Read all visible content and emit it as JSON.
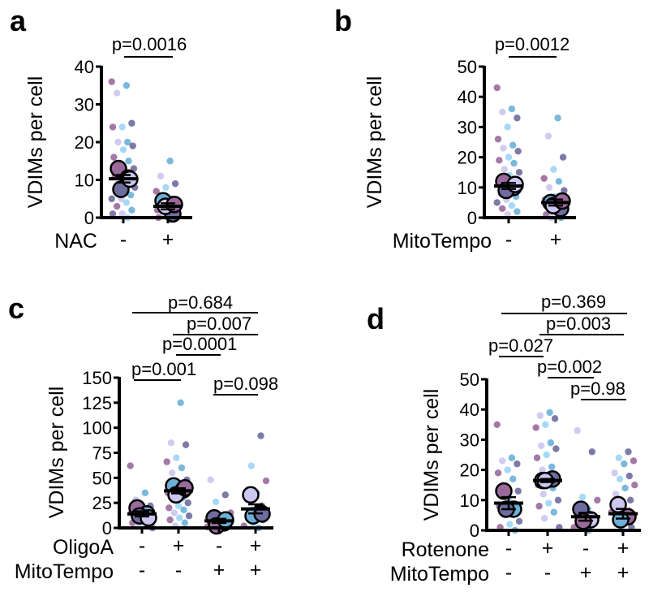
{
  "colors": {
    "purple": "#9a6a9c",
    "blue": "#6cb0d8",
    "lavender": "#cbc7ef",
    "slate": "#6e6d9f",
    "skyblue": "#9ed4f6"
  },
  "chart_data": [
    {
      "panel": "a",
      "type": "scatter",
      "ylabel": "VDIMs per cell",
      "ylim": [
        0,
        40
      ],
      "yticks": [
        "0",
        "10",
        "20",
        "30",
        "40"
      ],
      "rows": [
        {
          "name": "NAC",
          "values": [
            "-",
            "+"
          ]
        }
      ],
      "groups": [
        {
          "mean": 10.3,
          "sem": 1.0,
          "replicates": [
            13,
            10.5,
            7.5,
            10.2
          ],
          "points": [
            36,
            35,
            33,
            25,
            24,
            24,
            20,
            20,
            19,
            18,
            16,
            15,
            14,
            13,
            12,
            11,
            10,
            9,
            8,
            8,
            7,
            6,
            5,
            5,
            4,
            3,
            2,
            1,
            1,
            0
          ]
        },
        {
          "mean": 3.0,
          "sem": 0.8,
          "replicates": [
            4.5,
            1,
            3,
            3.5
          ],
          "points": [
            15,
            11,
            9,
            8,
            7,
            5,
            4,
            3,
            3,
            2,
            2,
            1,
            1,
            0,
            0,
            0
          ]
        }
      ],
      "comparisons": [
        {
          "groups": [
            1,
            2
          ],
          "label": "p=0.0016"
        }
      ]
    },
    {
      "panel": "b",
      "type": "scatter",
      "ylabel": "VDIMs per cell",
      "ylim": [
        0,
        50
      ],
      "yticks": [
        "0",
        "10",
        "20",
        "30",
        "40",
        "50"
      ],
      "rows": [
        {
          "name": "MitoTempo",
          "values": [
            "-",
            "+"
          ]
        }
      ],
      "groups": [
        {
          "mean": 10.5,
          "sem": 1.0,
          "replicates": [
            12,
            10,
            9,
            11
          ],
          "points": [
            43,
            36,
            35,
            33,
            30,
            26,
            24,
            23,
            22,
            20,
            19,
            18,
            16,
            15,
            14,
            13,
            12,
            11,
            10,
            9,
            8,
            7,
            6,
            5,
            4,
            3,
            2,
            1
          ]
        },
        {
          "mean": 5.0,
          "sem": 1.0,
          "replicates": [
            5,
            3,
            4,
            5.5
          ],
          "points": [
            33,
            27,
            20,
            16,
            13,
            12,
            10,
            9,
            7,
            6,
            5,
            4,
            3,
            2,
            1,
            0,
            0
          ]
        }
      ],
      "comparisons": [
        {
          "groups": [
            1,
            2
          ],
          "label": "p=0.0012"
        }
      ]
    },
    {
      "panel": "c",
      "type": "scatter",
      "ylabel": "VDIMs per cell",
      "ylim": [
        0,
        150
      ],
      "yticks": [
        "0",
        "25",
        "50",
        "75",
        "100",
        "125",
        "150"
      ],
      "rows": [
        {
          "name": "OligoA",
          "values": [
            "-",
            "+",
            "-",
            "+"
          ]
        },
        {
          "name": "MitoTempo",
          "values": [
            "-",
            "-",
            "+",
            "+"
          ]
        }
      ],
      "groups": [
        {
          "mean": 14,
          "sem": 2.5,
          "replicates": [
            20,
            14,
            12,
            10
          ],
          "points": [
            62,
            35,
            28,
            22,
            18,
            15,
            12,
            10,
            8,
            6,
            5,
            3,
            2,
            0
          ]
        },
        {
          "mean": 37,
          "sem": 2.5,
          "replicates": [
            42,
            38,
            33,
            40
          ],
          "points": [
            125,
            85,
            83,
            70,
            66,
            60,
            55,
            48,
            40,
            35,
            30,
            28,
            25,
            22,
            20,
            18,
            15,
            12,
            10,
            8,
            5,
            2
          ]
        },
        {
          "mean": 7,
          "sem": 2.0,
          "replicates": [
            10,
            5,
            2,
            8
          ],
          "points": [
            48,
            33,
            26,
            15,
            10,
            8,
            5,
            3,
            1,
            0
          ]
        },
        {
          "mean": 19,
          "sem": 4.5,
          "replicates": [
            33,
            15,
            12,
            14
          ],
          "points": [
            92,
            62,
            47,
            35,
            28,
            22,
            18,
            15,
            12,
            10,
            8,
            5,
            2,
            0
          ]
        }
      ],
      "comparisons": [
        {
          "groups": [
            1,
            4
          ],
          "label": "p=0.684"
        },
        {
          "groups": [
            2,
            4
          ],
          "label": "p=0.007"
        },
        {
          "groups": [
            2,
            3
          ],
          "label": "p=0.0001"
        },
        {
          "groups": [
            1,
            2
          ],
          "label": "p=0.001"
        },
        {
          "groups": [
            3,
            4
          ],
          "label": "p=0.098"
        }
      ]
    },
    {
      "panel": "d",
      "type": "scatter",
      "ylabel": "VDIMs per cell",
      "ylim": [
        0,
        50
      ],
      "yticks": [
        "0",
        "10",
        "20",
        "30",
        "40",
        "50"
      ],
      "rows": [
        {
          "name": "Rotenone",
          "values": [
            "-",
            "+",
            "-",
            "+"
          ]
        },
        {
          "name": "MitoTempo",
          "values": [
            "-",
            "-",
            "+",
            "+"
          ]
        }
      ],
      "groups": [
        {
          "mean": 9,
          "sem": 2.0,
          "replicates": [
            13,
            7,
            7
          ],
          "points": [
            35,
            24,
            23,
            22,
            20,
            19,
            17,
            15,
            13,
            10,
            8,
            6,
            5,
            3,
            2,
            1,
            0
          ]
        },
        {
          "mean": 16.5,
          "sem": 0.5,
          "replicates": [
            16.5,
            17,
            16.5
          ],
          "points": [
            39,
            38,
            37,
            35,
            34,
            29,
            28,
            27,
            25,
            24,
            21,
            20,
            18,
            16,
            15,
            14,
            12,
            10,
            9,
            8,
            6,
            4,
            1
          ]
        },
        {
          "mean": 4.5,
          "sem": 1.3,
          "replicates": [
            7,
            3.5,
            3
          ],
          "points": [
            33,
            26,
            11,
            10,
            7,
            5,
            3,
            2,
            1,
            0
          ]
        },
        {
          "mean": 5.5,
          "sem": 1.6,
          "replicates": [
            8.5,
            4.5,
            3.5
          ],
          "points": [
            26,
            24,
            23,
            22,
            19,
            18,
            17,
            15,
            14,
            12,
            10,
            8,
            6,
            4,
            2,
            1,
            0
          ]
        }
      ],
      "comparisons": [
        {
          "groups": [
            1,
            4
          ],
          "label": "p=0.369"
        },
        {
          "groups": [
            2,
            4
          ],
          "label": "p=0.003"
        },
        {
          "groups": [
            1,
            2
          ],
          "label": "p=0.027"
        },
        {
          "groups": [
            2,
            3
          ],
          "label": "p=0.002"
        },
        {
          "groups": [
            3,
            4
          ],
          "label": "p=0.98"
        }
      ]
    }
  ]
}
